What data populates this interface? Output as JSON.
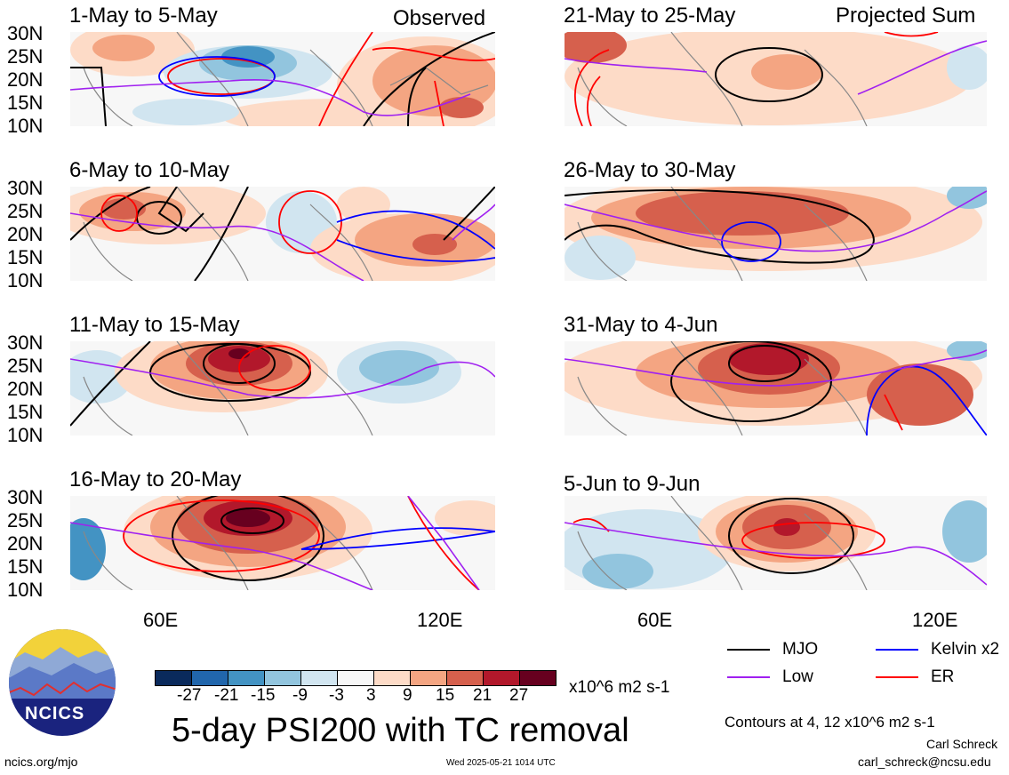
{
  "panels_left": [
    {
      "title": "1-May to 5-May",
      "tag": "Observed"
    },
    {
      "title": "6-May to 10-May",
      "tag": ""
    },
    {
      "title": "11-May to 15-May",
      "tag": ""
    },
    {
      "title": "16-May to 20-May",
      "tag": ""
    }
  ],
  "panels_right": [
    {
      "title": "21-May to 25-May",
      "tag": "Projected Sum"
    },
    {
      "title": "26-May to 30-May",
      "tag": ""
    },
    {
      "title": "31-May to 4-Jun",
      "tag": ""
    },
    {
      "title": "5-Jun to 9-Jun",
      "tag": ""
    }
  ],
  "lat_labels": [
    "30N",
    "25N",
    "20N",
    "15N",
    "10N"
  ],
  "lon_labels": [
    "60E",
    "120E"
  ],
  "colorbar": {
    "ticks": [
      "-27",
      "-21",
      "-15",
      "-9",
      "-3",
      "3",
      "9",
      "15",
      "21",
      "27"
    ],
    "colors": [
      "#0a2a5c",
      "#2166ac",
      "#4393c3",
      "#92c5de",
      "#d1e5f0",
      "#f7f7f7",
      "#fddbc7",
      "#f4a582",
      "#d6604d",
      "#b2182b",
      "#67001f"
    ],
    "units": "x10^6 m2 s-1"
  },
  "legend": {
    "items": [
      {
        "label": "MJO",
        "color": "#000000"
      },
      {
        "label": "Kelvin x2",
        "color": "#0000ff"
      },
      {
        "label": "Low",
        "color": "#a020f0"
      },
      {
        "label": "ER",
        "color": "#ff0000"
      }
    ],
    "contours_note": "Contours at 4, 12 x10^6 m2 s-1"
  },
  "title": "5-day PSI200 with TC removal",
  "logo_text": "NCICS",
  "footer": {
    "url": "ncics.org/mjo",
    "timestamp": "Wed 2025-05-21 1014 UTC",
    "author": "Carl Schreck",
    "email": "carl_schreck@ncsu.edu"
  }
}
